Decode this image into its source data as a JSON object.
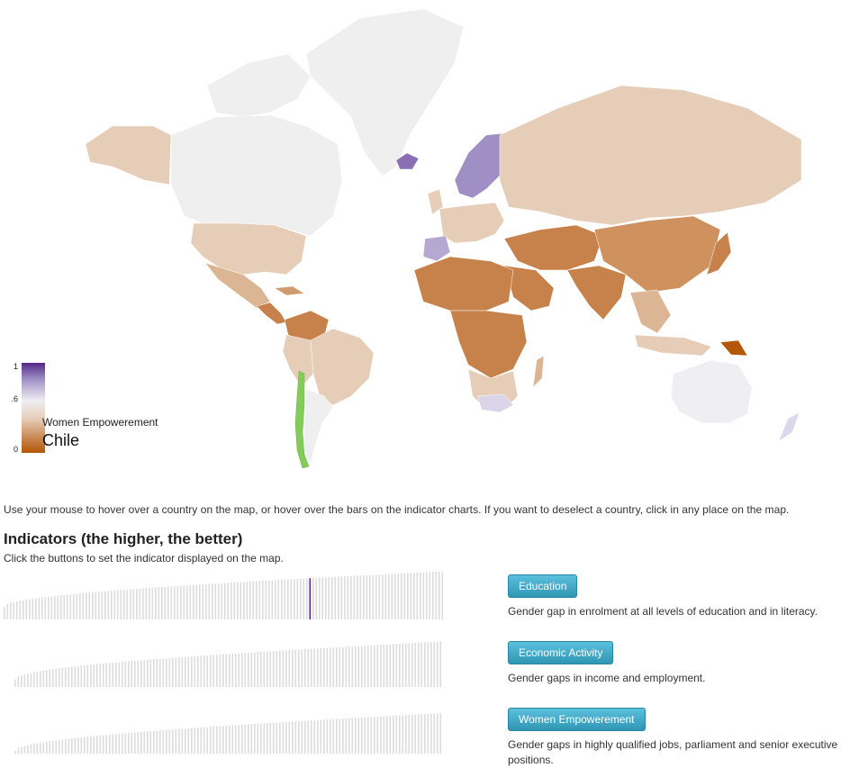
{
  "legend": {
    "ticks": [
      "1",
      ".6",
      "0"
    ],
    "indicator": "Women Empowerement",
    "country": "Chile",
    "colors": {
      "high": "#542788",
      "mid": "#efeef3",
      "low": "#b35806",
      "selected": "#84cc5a"
    }
  },
  "instructions": "Use your mouse to hover over a country on the map, or hover over the bars on the indicator charts. If you want to deselect a country, click in any place on the map.",
  "section": {
    "title": "Indicators (the higher, the better)",
    "subtitle": "Click the buttons to set the indicator displayed on the map."
  },
  "indicators": [
    {
      "label": "Education",
      "description": "Gender gap in enrolment at all levels of education and in literacy."
    },
    {
      "label": "Economic Activity",
      "description": "Gender gaps in income and employment."
    },
    {
      "label": "Women Empowerement",
      "description": "Gender gaps in highly qualified jobs, parliament and senior executive positions."
    }
  ],
  "chart_data": [
    {
      "type": "bar",
      "title": "",
      "series": [
        {
          "values_range": [
            0.25,
            0.95
          ]
        }
      ],
      "highlight_rank_fraction": 0.69,
      "bar_count": 140
    },
    {
      "type": "bar",
      "title": "",
      "series": [
        {
          "values_range": [
            0.15,
            0.9
          ]
        }
      ],
      "bar_count": 136
    },
    {
      "type": "bar",
      "title": "",
      "series": [
        {
          "values_range": [
            0.05,
            0.8
          ]
        }
      ],
      "bar_count": 136
    }
  ]
}
